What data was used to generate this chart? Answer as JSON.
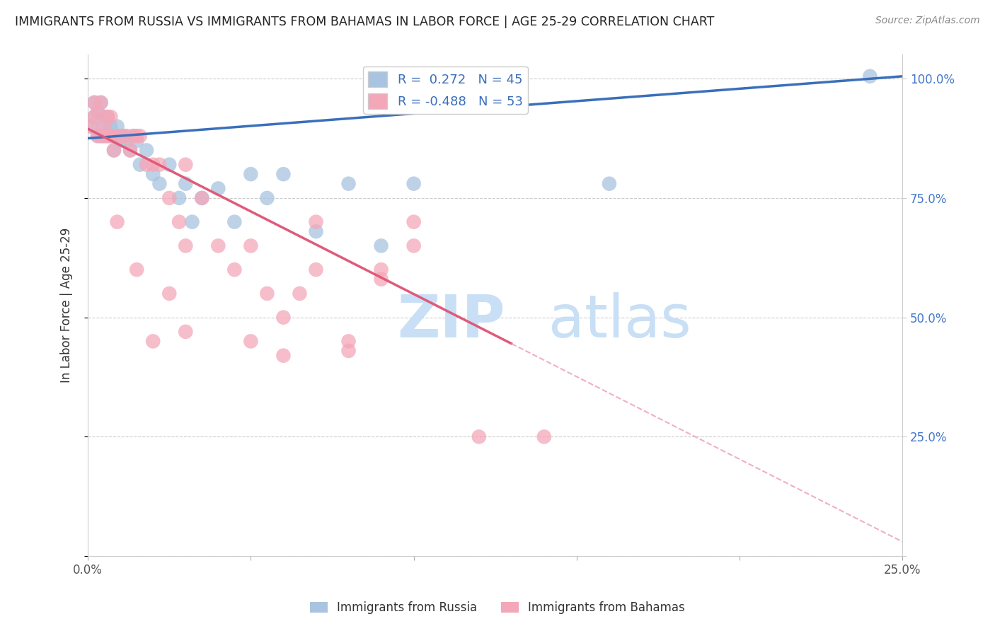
{
  "title": "IMMIGRANTS FROM RUSSIA VS IMMIGRANTS FROM BAHAMAS IN LABOR FORCE | AGE 25-29 CORRELATION CHART",
  "source": "Source: ZipAtlas.com",
  "ylabel": "In Labor Force | Age 25-29",
  "xlim": [
    0.0,
    0.25
  ],
  "ylim": [
    0.0,
    1.05
  ],
  "xticks": [
    0.0,
    0.05,
    0.1,
    0.15,
    0.2,
    0.25
  ],
  "yticks": [
    0.0,
    0.25,
    0.5,
    0.75,
    1.0
  ],
  "xticklabels": [
    "0.0%",
    "",
    "",
    "",
    "",
    "25.0%"
  ],
  "yticklabels": [
    "",
    "25.0%",
    "50.0%",
    "75.0%",
    "100.0%"
  ],
  "russia_color": "#a8c4e0",
  "bahamas_color": "#f4a7b9",
  "russia_R": 0.272,
  "russia_N": 45,
  "bahamas_R": -0.488,
  "bahamas_N": 53,
  "russia_line_color": "#3a6fbb",
  "bahamas_line_color": "#e05a7a",
  "bahamas_line_dashed_color": "#f0b0c0",
  "watermark_zip": "ZIP",
  "watermark_atlas": "atlas",
  "watermark_color": "#c8dff5",
  "background": "#ffffff",
  "russia_line_x0": 0.0,
  "russia_line_y0": 0.875,
  "russia_line_x1": 0.25,
  "russia_line_y1": 1.005,
  "bahamas_line_solid_x0": 0.0,
  "bahamas_line_solid_y0": 0.895,
  "bahamas_line_solid_x1": 0.13,
  "bahamas_line_solid_y1": 0.445,
  "bahamas_line_dashed_x0": 0.13,
  "bahamas_line_dashed_y0": 0.445,
  "bahamas_line_dashed_x1": 0.25,
  "bahamas_line_dashed_y1": 0.03,
  "russia_dots_x": [
    0.001,
    0.002,
    0.002,
    0.003,
    0.003,
    0.004,
    0.004,
    0.005,
    0.005,
    0.005,
    0.006,
    0.006,
    0.007,
    0.007,
    0.008,
    0.008,
    0.009,
    0.009,
    0.01,
    0.01,
    0.011,
    0.012,
    0.013,
    0.014,
    0.015,
    0.016,
    0.018,
    0.02,
    0.022,
    0.025,
    0.028,
    0.03,
    0.032,
    0.035,
    0.04,
    0.045,
    0.05,
    0.055,
    0.06,
    0.07,
    0.08,
    0.09,
    0.1,
    0.16,
    0.24
  ],
  "russia_dots_y": [
    0.9,
    0.92,
    0.95,
    0.88,
    0.93,
    0.88,
    0.95,
    0.88,
    0.9,
    0.92,
    0.88,
    0.92,
    0.88,
    0.9,
    0.88,
    0.85,
    0.88,
    0.9,
    0.87,
    0.88,
    0.88,
    0.87,
    0.85,
    0.88,
    0.87,
    0.82,
    0.85,
    0.8,
    0.78,
    0.82,
    0.75,
    0.78,
    0.7,
    0.75,
    0.77,
    0.7,
    0.8,
    0.75,
    0.8,
    0.68,
    0.78,
    0.65,
    0.78,
    0.78,
    1.005
  ],
  "bahamas_dots_x": [
    0.001,
    0.002,
    0.002,
    0.003,
    0.003,
    0.004,
    0.004,
    0.005,
    0.005,
    0.006,
    0.006,
    0.007,
    0.007,
    0.008,
    0.008,
    0.009,
    0.01,
    0.011,
    0.012,
    0.013,
    0.014,
    0.015,
    0.016,
    0.018,
    0.02,
    0.022,
    0.025,
    0.028,
    0.03,
    0.035,
    0.04,
    0.045,
    0.05,
    0.055,
    0.06,
    0.065,
    0.07,
    0.08,
    0.09,
    0.1,
    0.015,
    0.025,
    0.03,
    0.05,
    0.06,
    0.02,
    0.03,
    0.07,
    0.08,
    0.09,
    0.1,
    0.12,
    0.14
  ],
  "bahamas_dots_y": [
    0.9,
    0.92,
    0.95,
    0.88,
    0.93,
    0.88,
    0.95,
    0.88,
    0.9,
    0.92,
    0.88,
    0.92,
    0.88,
    0.88,
    0.85,
    0.7,
    0.88,
    0.88,
    0.88,
    0.85,
    0.88,
    0.88,
    0.88,
    0.82,
    0.82,
    0.82,
    0.75,
    0.7,
    0.82,
    0.75,
    0.65,
    0.6,
    0.65,
    0.55,
    0.5,
    0.55,
    0.7,
    0.45,
    0.6,
    0.7,
    0.6,
    0.55,
    0.65,
    0.45,
    0.42,
    0.45,
    0.47,
    0.6,
    0.43,
    0.58,
    0.65,
    0.25,
    0.25
  ]
}
